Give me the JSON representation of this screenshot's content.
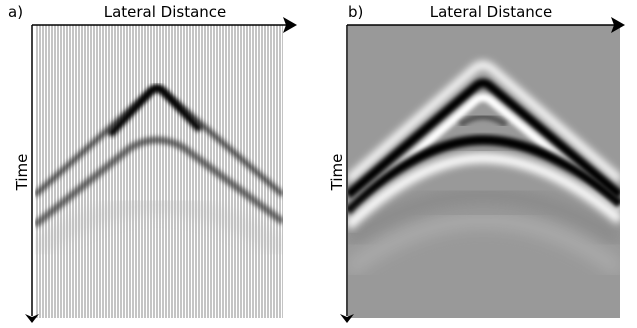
{
  "panels": [
    {
      "label": "a)",
      "x_axis": "Lateral Distance",
      "y_axis": "Time"
    },
    {
      "label": "b)",
      "x_axis": "Lateral Distance",
      "y_axis": "Time"
    }
  ]
}
